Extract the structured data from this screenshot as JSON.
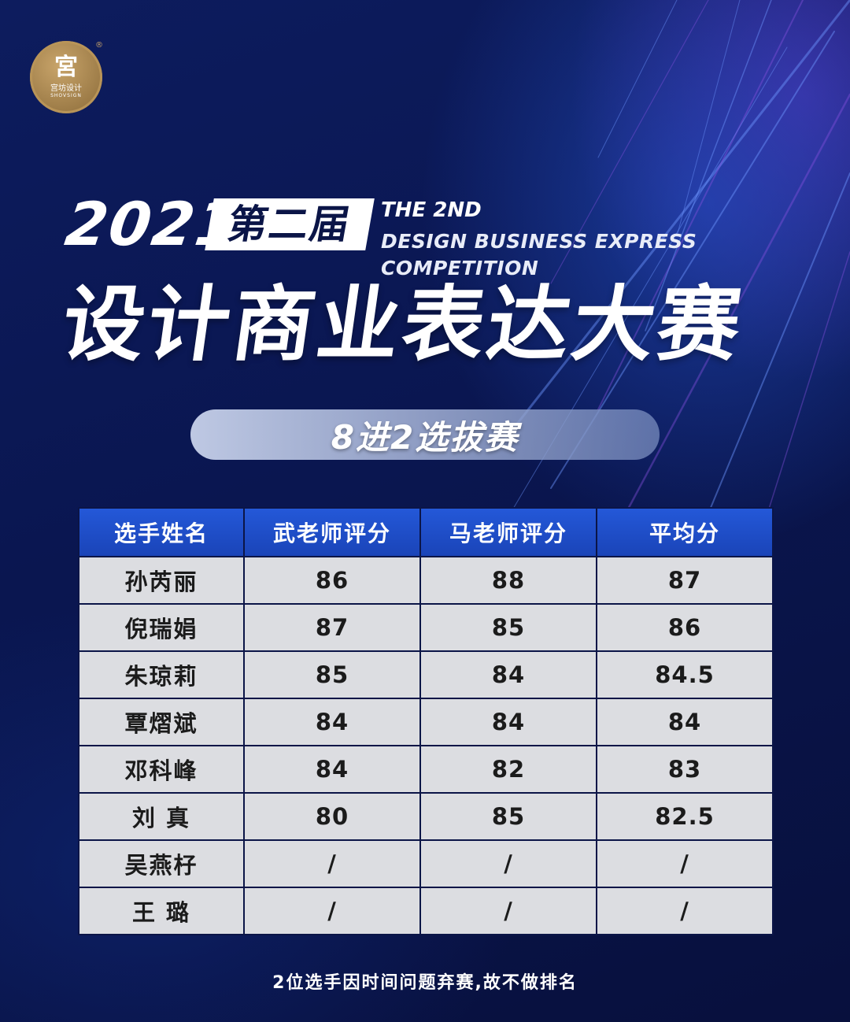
{
  "logo": {
    "mark": "宮",
    "text": "宫坊设计",
    "sub": "SHOVSIGN",
    "reg": "®"
  },
  "header": {
    "year": "2021",
    "edition": "第二届",
    "english_line1": "THE 2ND",
    "english_line2": "DESIGN BUSINESS EXPRESS COMPETITION",
    "title": "设计商业表达大赛",
    "round": "8进2选拔赛"
  },
  "table": {
    "columns": [
      "选手姓名",
      "武老师评分",
      "马老师评分",
      "平均分"
    ],
    "rows": [
      [
        "孙芮丽",
        "86",
        "88",
        "87"
      ],
      [
        "倪瑞娟",
        "87",
        "85",
        "86"
      ],
      [
        "朱琼莉",
        "85",
        "84",
        "84.5"
      ],
      [
        "覃熠斌",
        "84",
        "84",
        "84"
      ],
      [
        "邓科峰",
        "84",
        "82",
        "83"
      ],
      [
        "刘 真",
        "80",
        "85",
        "82.5"
      ],
      [
        "吴燕杍",
        "/",
        "/",
        "/"
      ],
      [
        "王 璐",
        "/",
        "/",
        "/"
      ]
    ]
  },
  "footnote": "2位选手因时间问题弃赛,故不做排名",
  "colors": {
    "background": "#0b1547",
    "header_blue": "#1f4fcc",
    "cell_gray": "#dcdde1",
    "logo_gold": "#b89458"
  }
}
